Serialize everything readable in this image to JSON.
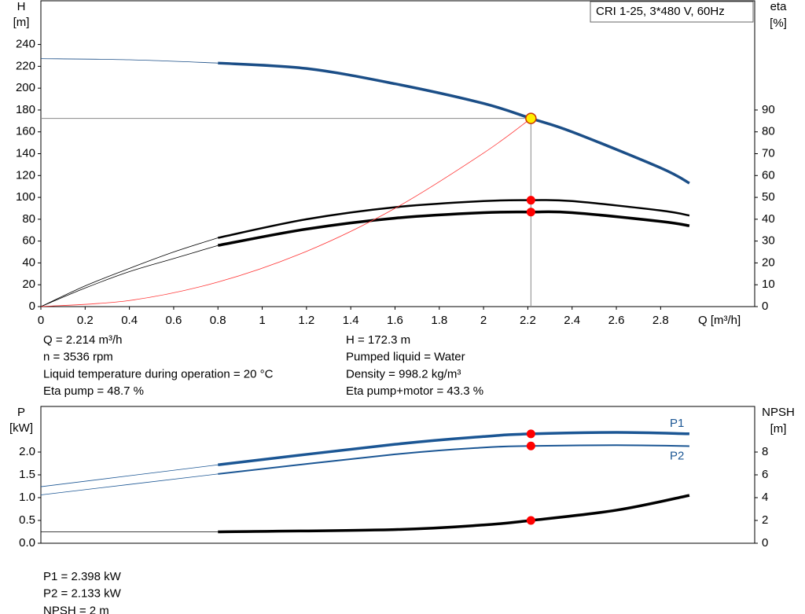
{
  "chart_data": [
    {
      "type": "line",
      "legend": "CRI 1-25, 3*480 V, 60Hz",
      "ylabel": "H",
      "yunit": "[m]",
      "y2label": "eta",
      "y2unit": "[%]",
      "xlabel": "Q [m³/h]",
      "xlim": [
        0,
        3.225
      ],
      "xticks": [
        0,
        0.2,
        0.4,
        0.6,
        0.8,
        1.0,
        1.2,
        1.4,
        1.6,
        1.8,
        2.0,
        2.2,
        2.4,
        2.6,
        2.8
      ],
      "ylim": [
        0,
        280
      ],
      "yticks": [
        0,
        20,
        40,
        60,
        80,
        100,
        120,
        140,
        160,
        180,
        200,
        220,
        240
      ],
      "y2lim": [
        0,
        140
      ],
      "y2ticks": [
        0,
        10,
        20,
        30,
        40,
        50,
        60,
        70,
        80,
        90
      ],
      "bold_from_x": 0.8,
      "duty_x": 2.214,
      "series": [
        {
          "color": "#1b4e87",
          "linewidth": 3.5,
          "bold": true,
          "guide": true,
          "marker_color": "#ffee00",
          "x": [
            0,
            0.4,
            0.8,
            1.2,
            1.6,
            2.0,
            2.214,
            2.4,
            2.8,
            2.93
          ],
          "values": [
            227,
            226,
            223,
            218,
            204,
            186,
            172.3,
            160,
            127,
            113
          ]
        },
        {
          "color": "#000000",
          "linewidth": 2.5,
          "bold": true,
          "axis": "y2",
          "marker_color": "#ff0000",
          "x": [
            0,
            0.2,
            0.4,
            0.6,
            0.8,
            1.2,
            1.6,
            2.0,
            2.214,
            2.4,
            2.8,
            2.93
          ],
          "values": [
            0,
            9.5,
            17.5,
            25,
            31.5,
            40,
            45.5,
            48.3,
            48.7,
            48.3,
            44,
            41.7
          ]
        },
        {
          "color": "#000000",
          "linewidth": 3.5,
          "bold": true,
          "axis": "y2",
          "marker_color": "#ff0000",
          "x": [
            0,
            0.2,
            0.4,
            0.6,
            0.8,
            1.2,
            1.6,
            2.0,
            2.214,
            2.4,
            2.8,
            2.93
          ],
          "values": [
            0,
            8.5,
            16,
            22,
            28,
            35.5,
            40.5,
            43,
            43.3,
            43,
            39,
            37
          ]
        },
        {
          "color": "#ff3333",
          "linewidth": 0.8,
          "bold": false,
          "x": [
            0,
            0.4,
            0.8,
            1.2,
            1.6,
            2.0,
            2.214
          ],
          "values": [
            0,
            5.6,
            22.5,
            50.6,
            90,
            140.6,
            172.3
          ]
        }
      ],
      "info": [
        [
          "Q = 2.214 m³/h",
          "n = 3536 rpm",
          "Liquid temperature during operation = 20 °C",
          "Eta pump = 48.7 %"
        ],
        [
          "H = 172.3 m",
          "Pumped liquid = Water",
          "Density = 998.2 kg/m³",
          "Eta pump+motor = 43.3 %"
        ]
      ]
    },
    {
      "type": "line",
      "ylabel": "P",
      "yunit": "[kW]",
      "y2label": "NPSH",
      "y2unit": "[m]",
      "xlim": [
        0,
        3.225
      ],
      "ylim": [
        0,
        3
      ],
      "yticks": [
        {
          "value": 0,
          "label": "0.0"
        },
        0.5,
        {
          "value": 1,
          "label": "1.0"
        },
        1.5,
        {
          "value": 2,
          "label": "2.0"
        }
      ],
      "y2lim": [
        0,
        12
      ],
      "y2ticks": [
        0,
        2,
        4,
        6,
        8
      ],
      "bold_from_x": 0.8,
      "duty_x": 2.214,
      "series": [
        {
          "name": "P1",
          "color": "#1b5694",
          "linewidth": 3.5,
          "bold": true,
          "marker_color": "#ff0000",
          "x": [
            0,
            0.8,
            1.6,
            2.0,
            2.214,
            2.6,
            2.93
          ],
          "values": [
            1.24,
            1.72,
            2.17,
            2.34,
            2.398,
            2.43,
            2.4
          ]
        },
        {
          "name": "P2",
          "color": "#1b5694",
          "linewidth": 2,
          "bold": true,
          "marker_color": "#ff0000",
          "x": [
            0,
            0.8,
            1.6,
            2.0,
            2.214,
            2.6,
            2.93
          ],
          "values": [
            1.06,
            1.52,
            1.95,
            2.1,
            2.133,
            2.15,
            2.13
          ]
        },
        {
          "color": "#000000",
          "linewidth": 3.5,
          "bold": true,
          "axis": "y2",
          "marker_color": "#ff0000",
          "x": [
            0,
            0.8,
            1.6,
            2.0,
            2.214,
            2.6,
            2.93
          ],
          "values": [
            1,
            1,
            1.2,
            1.6,
            2,
            2.9,
            4.2
          ]
        }
      ],
      "info": [
        [
          "P1 = 2.398 kW",
          "P2 = 2.133 kW",
          "NPSH = 2 m"
        ]
      ]
    }
  ]
}
